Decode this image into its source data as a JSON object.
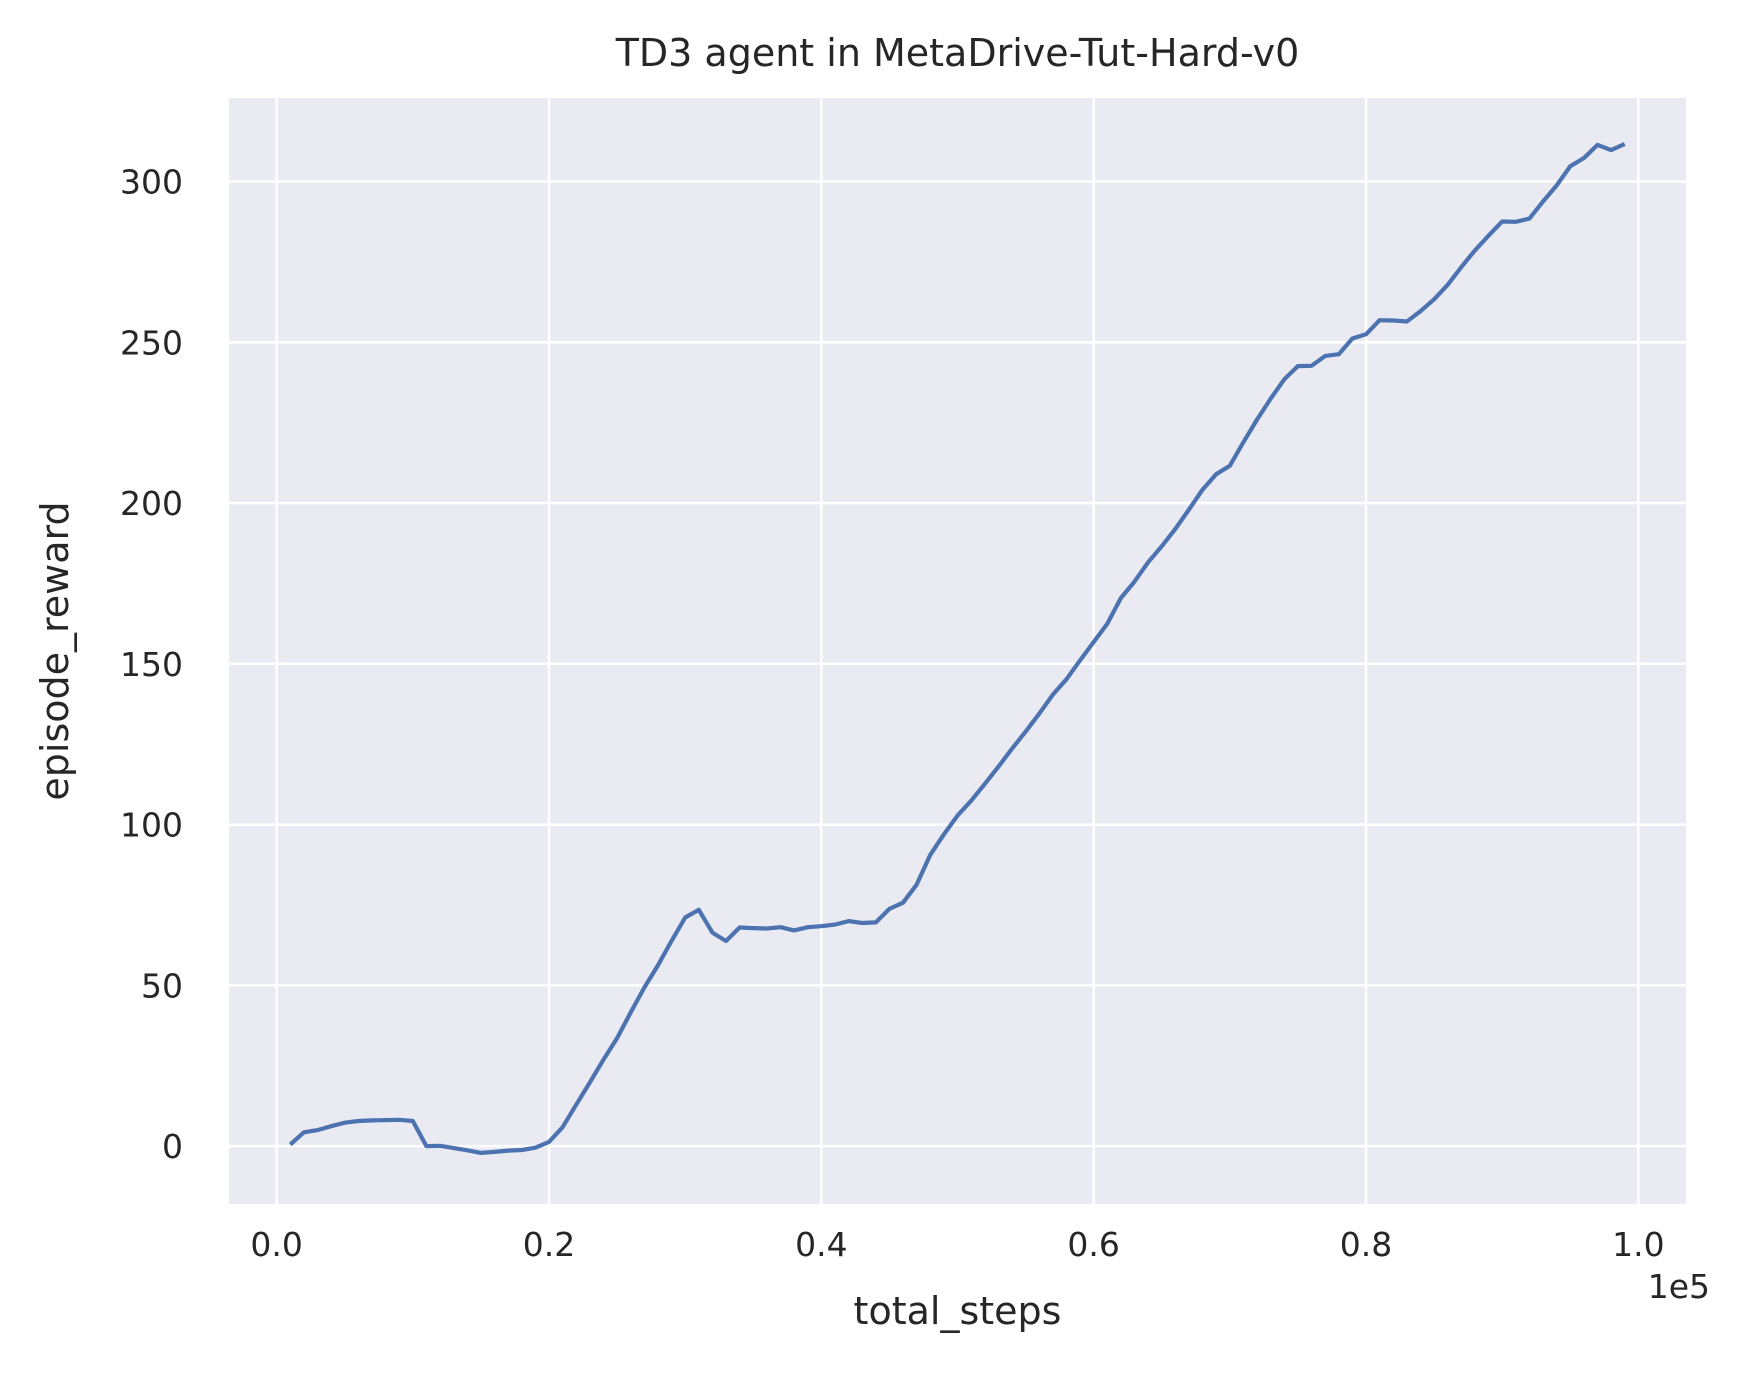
{
  "chart_data": {
    "type": "line",
    "title": "TD3 agent in MetaDrive-Tut-Hard-v0",
    "xlabel": "total_steps",
    "ylabel": "episode_reward",
    "x_offset_text": "1e5",
    "xlim": [
      -0.035,
      1.035
    ],
    "ylim": [
      -18,
      326
    ],
    "x_ticks": [
      0.0,
      0.2,
      0.4,
      0.6,
      0.8,
      1.0
    ],
    "x_tick_labels": [
      "0.0",
      "0.2",
      "0.4",
      "0.6",
      "0.8",
      "1.0"
    ],
    "y_ticks": [
      0,
      50,
      100,
      150,
      200,
      250,
      300
    ],
    "y_tick_labels": [
      "0",
      "50",
      "100",
      "150",
      "200",
      "250",
      "300"
    ],
    "grid": true,
    "background_color": "#eaeaf2",
    "series": [
      {
        "color": "#4c72b0",
        "x": [
          0.01,
          0.02,
          0.03,
          0.04,
          0.05,
          0.06,
          0.07,
          0.08,
          0.09,
          0.1,
          0.11,
          0.12,
          0.13,
          0.14,
          0.15,
          0.16,
          0.17,
          0.18,
          0.19,
          0.2,
          0.21,
          0.22,
          0.23,
          0.24,
          0.25,
          0.26,
          0.27,
          0.28,
          0.29,
          0.3,
          0.31,
          0.32,
          0.33,
          0.34,
          0.35,
          0.36,
          0.37,
          0.38,
          0.39,
          0.4,
          0.41,
          0.42,
          0.43,
          0.44,
          0.45,
          0.46,
          0.47,
          0.48,
          0.49,
          0.5,
          0.51,
          0.52,
          0.53,
          0.54,
          0.55,
          0.56,
          0.57,
          0.58,
          0.59,
          0.6,
          0.61,
          0.62,
          0.63,
          0.64,
          0.65,
          0.66,
          0.67,
          0.68,
          0.69,
          0.7,
          0.71,
          0.72,
          0.73,
          0.74,
          0.75,
          0.76,
          0.77,
          0.78,
          0.79,
          0.8,
          0.81,
          0.82,
          0.83,
          0.84,
          0.85,
          0.86,
          0.87,
          0.88,
          0.89,
          0.9,
          0.91,
          0.92,
          0.93,
          0.94,
          0.95,
          0.96,
          0.97,
          0.98,
          0.99
        ],
        "y": [
          0.5,
          4.3,
          5.0,
          6.2,
          7.3,
          7.8,
          8.0,
          8.1,
          8.2,
          7.8,
          0.0,
          0.1,
          -0.6,
          -1.3,
          -2.1,
          -1.8,
          -1.4,
          -1.2,
          -0.5,
          1.3,
          5.9,
          12.9,
          19.8,
          26.9,
          33.6,
          41.6,
          49.3,
          56.2,
          63.8,
          71.1,
          73.5,
          66.4,
          63.8,
          68.0,
          67.8,
          67.7,
          68.1,
          67.1,
          68.1,
          68.4,
          68.9,
          70.0,
          69.4,
          69.6,
          73.8,
          75.7,
          81.3,
          90.6,
          97.0,
          102.8,
          107.4,
          112.6,
          118.0,
          123.6,
          128.9,
          134.5,
          140.4,
          145.2,
          151.1,
          156.8,
          162.5,
          170.5,
          175.6,
          181.6,
          186.6,
          192.0,
          198.0,
          204.2,
          209.0,
          211.6,
          219.0,
          226.0,
          232.5,
          238.5,
          242.6,
          242.7,
          245.8,
          246.3,
          251.2,
          252.5,
          256.9,
          256.8,
          256.5,
          259.7,
          263.4,
          267.9,
          273.4,
          278.6,
          283.2,
          287.6,
          287.5,
          288.5,
          293.8,
          298.8,
          304.8,
          307.3,
          311.4,
          309.8,
          311.7
        ]
      }
    ]
  }
}
